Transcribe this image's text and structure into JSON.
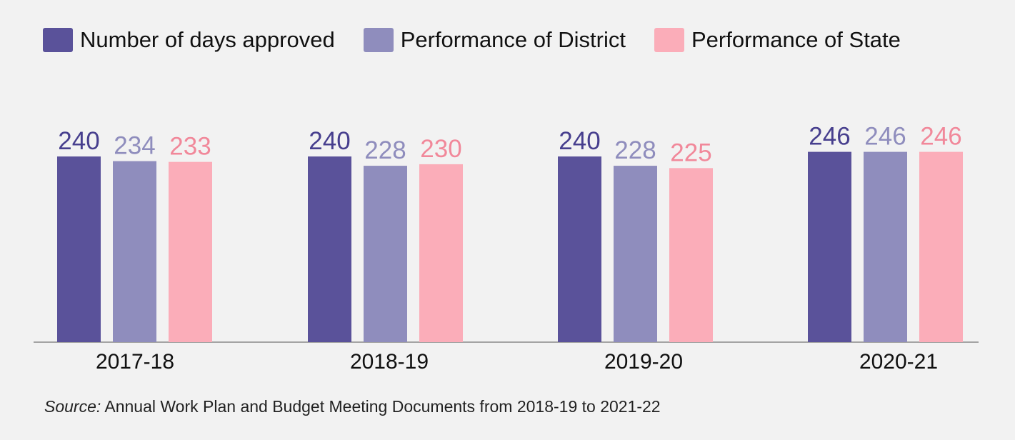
{
  "chart_data": {
    "type": "bar",
    "categories": [
      "2017-18",
      "2018-19",
      "2019-20",
      "2020-21"
    ],
    "series": [
      {
        "name": "Number of days approved",
        "color": "#5a529a",
        "values": [
          240,
          240,
          240,
          246
        ]
      },
      {
        "name": "Performance of District",
        "color": "#8f8dbd",
        "values": [
          234,
          228,
          228,
          246
        ]
      },
      {
        "name": "Performance of State",
        "color": "#fbadb9",
        "values": [
          233,
          230,
          225,
          246
        ]
      }
    ],
    "label_colors": [
      "#473f8e",
      "#8f8dbd",
      "#f1889a"
    ],
    "legend_position": "top",
    "grid": false
  },
  "source": {
    "prefix": "Source:",
    "text": " Annual Work Plan and Budget Meeting Documents from 2018-19 to 2021-22"
  }
}
